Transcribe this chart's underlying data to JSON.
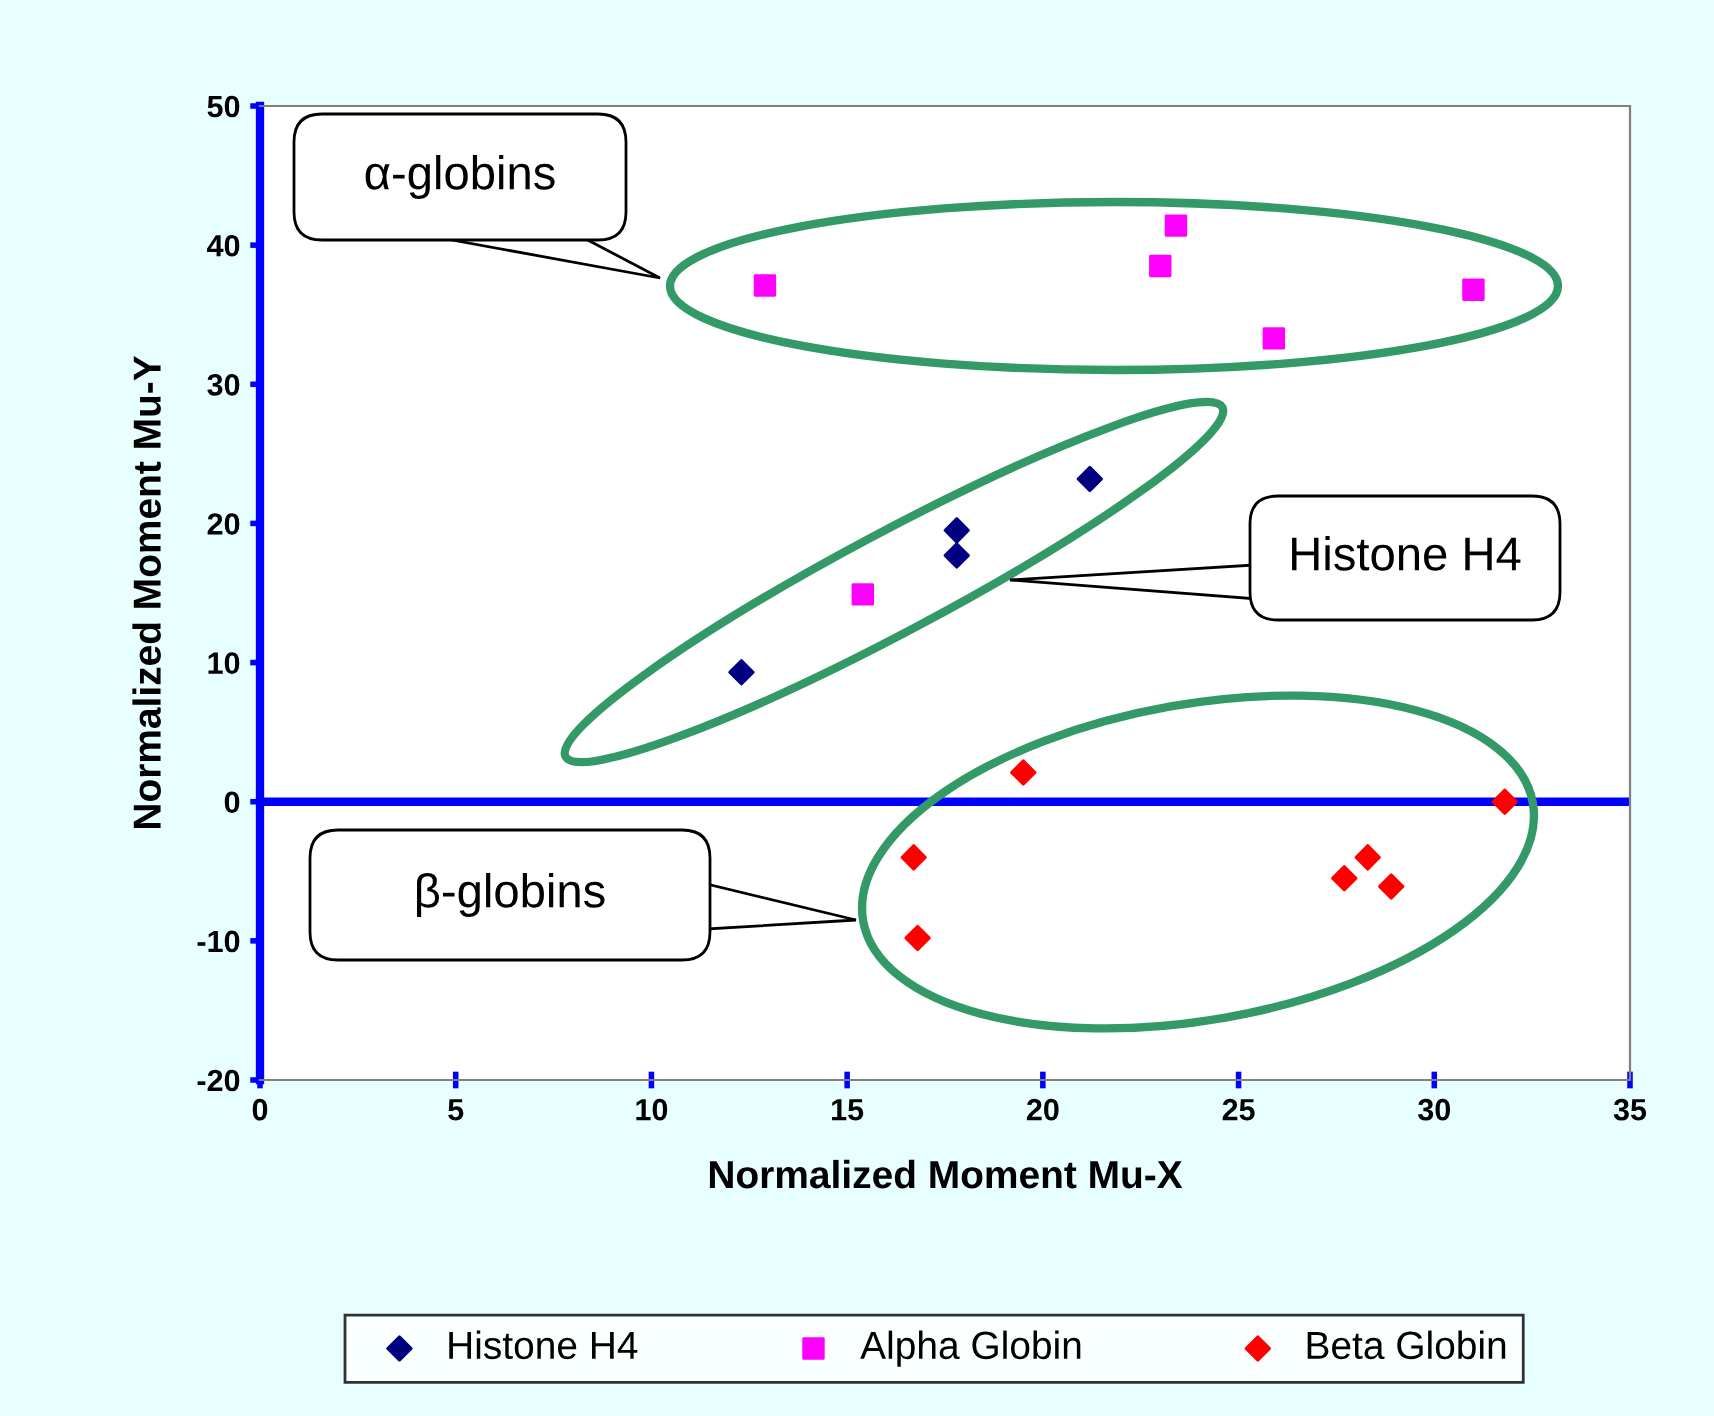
{
  "chart_data": {
    "type": "scatter",
    "xlabel": "Normalized Moment Mu-X",
    "ylabel": "Normalized Moment Mu-Y",
    "xlim": [
      0,
      35
    ],
    "xticks": [
      0,
      5,
      10,
      15,
      20,
      25,
      30,
      35
    ],
    "ylim": [
      -20,
      50
    ],
    "yticks": [
      -20,
      -10,
      0,
      10,
      20,
      30,
      40,
      50
    ],
    "grid": false,
    "legend": "bottom",
    "ref_lines": [
      {
        "axis": "y",
        "value": 0,
        "color": "#0000ff"
      }
    ],
    "series": [
      {
        "name": "Histone H4",
        "color": "#000080",
        "marker": "diamond",
        "x": [
          12.3,
          17.8,
          17.8,
          21.2
        ],
        "values": [
          9.3,
          19.5,
          17.7,
          23.2
        ]
      },
      {
        "name": "Alpha Globin",
        "color": "#ff00ff",
        "marker": "square",
        "x": [
          12.9,
          15.4,
          23.0,
          23.4,
          25.9,
          31.0
        ],
        "values": [
          37.1,
          14.9,
          38.5,
          41.4,
          33.3,
          36.8
        ]
      },
      {
        "name": "Beta Globin",
        "color": "#ff0000",
        "marker": "diamond",
        "x": [
          16.7,
          16.8,
          19.5,
          27.7,
          28.3,
          28.9,
          31.8
        ],
        "values": [
          -4.0,
          -9.8,
          2.1,
          -5.5,
          -4.0,
          -6.1,
          0
        ]
      }
    ],
    "annotations": [
      "α-globins",
      "Histone H4",
      "β-globins"
    ]
  }
}
